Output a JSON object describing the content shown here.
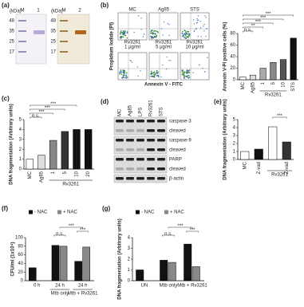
{
  "panel_a": {
    "label": "(a)",
    "units": [
      "(kDa)",
      "(kDa)"
    ],
    "lanes_left": [
      "M",
      "1"
    ],
    "lanes_right": [
      "M",
      "2"
    ],
    "markers_left": [
      "48",
      "35",
      "25",
      "17"
    ],
    "markers_right": [
      "48",
      "35",
      "25",
      "17"
    ]
  },
  "panel_b_flow": {
    "label": "(b)",
    "ylabel": "Propidium Iodide (PI)",
    "xlabel": "Annexin V - FITC",
    "plots": [
      [
        "MC"
      ],
      [
        "Ag85"
      ],
      [
        "STS"
      ],
      [
        "Rv3261",
        "1 μg/ml"
      ],
      [
        "Rv3261",
        "5 μg/ml"
      ],
      [
        "Rv3261",
        "10 μg/ml"
      ]
    ]
  },
  "panel_d": {
    "label": "(d)",
    "lanes": [
      "MC",
      "Ag85",
      "LPS",
      "Rv3261",
      "STS"
    ],
    "rows": [
      "caspase-3",
      "cleaved",
      "caspase-9",
      "cleaved",
      "PARP",
      "cleaved",
      "β-actin"
    ]
  },
  "chart_data": [
    {
      "type": "bar",
      "ylabel": "Annexin V-PI positive cells (%)",
      "categories": [
        "MC",
        "Ag85",
        "1",
        "5",
        "10",
        "STS"
      ],
      "values": [
        5,
        8,
        20,
        30,
        35,
        72
      ],
      "colors": [
        "#ffffff",
        "#dddddd",
        "#aaaaaa",
        "#888888",
        "#555555",
        "#111111"
      ],
      "ylim": [
        0,
        80
      ],
      "yticks": [
        0,
        20,
        40,
        60,
        80
      ],
      "groups": [
        {
          "label": "Rv3261",
          "span": [
            2,
            4
          ]
        }
      ],
      "significance": [
        {
          "label": "n.s.",
          "between": [
            0,
            1
          ]
        },
        {
          "label": "**",
          "between": [
            0,
            2
          ]
        },
        {
          "label": "***",
          "between": [
            0,
            3
          ]
        },
        {
          "label": "***",
          "between": [
            0,
            4
          ]
        },
        {
          "label": "***",
          "between": [
            0,
            5
          ]
        }
      ]
    },
    {
      "type": "bar",
      "label": "(c)",
      "ylabel": "DNA fragmentation (Arbitrary units)",
      "categories": [
        "MC",
        "Ag85",
        "1",
        "5",
        "10",
        "20"
      ],
      "values": [
        1,
        1.4,
        2.9,
        3.8,
        4,
        4
      ],
      "colors": [
        "#ffffff",
        "#dddddd",
        "#888888",
        "#333333",
        "#111111",
        "#111111"
      ],
      "ylim": [
        0,
        5
      ],
      "yticks": [
        0,
        1,
        2,
        3,
        4,
        5
      ],
      "groups": [
        {
          "label": "Rv3261",
          "span": [
            2,
            5
          ]
        }
      ],
      "significance": [
        {
          "label": "n.s.",
          "between": [
            0,
            1
          ]
        },
        {
          "label": "***",
          "between": [
            0,
            2
          ]
        },
        {
          "label": "***",
          "between": [
            0,
            3
          ]
        },
        {
          "label": "***",
          "between": [
            0,
            4
          ]
        }
      ]
    },
    {
      "type": "bar",
      "label": "(e)",
      "ylabel": "DNA fragmentation (Arbitrary units)",
      "categories": [
        "MC",
        "Z-vad",
        null,
        "Z-vad"
      ],
      "values": [
        1,
        1.3,
        4.1,
        2.2
      ],
      "colors": [
        "#ffffff",
        "#111111",
        "#ffffff",
        "#333333"
      ],
      "ylim": [
        0,
        5
      ],
      "yticks": [
        0,
        1,
        2,
        3,
        4,
        5
      ],
      "groups": [
        {
          "label": "Rv3261",
          "span": [
            2,
            3
          ]
        }
      ],
      "significance": [
        {
          "label": "***",
          "between": [
            2,
            3
          ]
        }
      ]
    },
    {
      "type": "grouped-bar",
      "label": "(f)",
      "ylabel": "CFU/ml (1x10⁴)",
      "categories": [
        "0 h",
        "24 h",
        "24 h"
      ],
      "series": [
        {
          "name": "- NAC",
          "color": "#111111",
          "values": [
            30,
            82,
            45
          ]
        },
        {
          "name": "+ NAC",
          "color": "#888888",
          "values": [
            null,
            80,
            78
          ]
        }
      ],
      "ylim": [
        0,
        100
      ],
      "yticks": [
        0,
        20,
        40,
        60,
        80,
        100
      ],
      "groups": [
        {
          "label": "Mtb only",
          "span": [
            1,
            1
          ]
        },
        {
          "label": "Mtb + Rv3261",
          "span": [
            2,
            2
          ]
        }
      ],
      "significance": [
        {
          "label": "n.s.",
          "between": [
            1,
            1
          ]
        },
        {
          "label": "***",
          "between": [
            2,
            2
          ]
        },
        {
          "label": "***",
          "between": [
            1,
            2
          ]
        }
      ]
    },
    {
      "type": "grouped-bar",
      "label": "(g)",
      "ylabel": "DNA fragmentation (Arbitrary units)",
      "categories": [
        "UN",
        "Mtb only",
        "Mtb + Rv3261"
      ],
      "series": [
        {
          "name": "- NAC",
          "color": "#111111",
          "values": [
            1,
            1.9,
            3.4
          ]
        },
        {
          "name": "+ NAC",
          "color": "#888888",
          "values": [
            null,
            1.7,
            1.3
          ]
        }
      ],
      "ylim": [
        0,
        4
      ],
      "yticks": [
        0,
        1,
        2,
        3,
        4
      ],
      "significance": [
        {
          "label": "n.s.",
          "between": [
            1,
            1
          ]
        },
        {
          "label": "***",
          "between": [
            2,
            2
          ]
        },
        {
          "label": "***",
          "between": [
            1,
            2
          ]
        }
      ]
    }
  ]
}
